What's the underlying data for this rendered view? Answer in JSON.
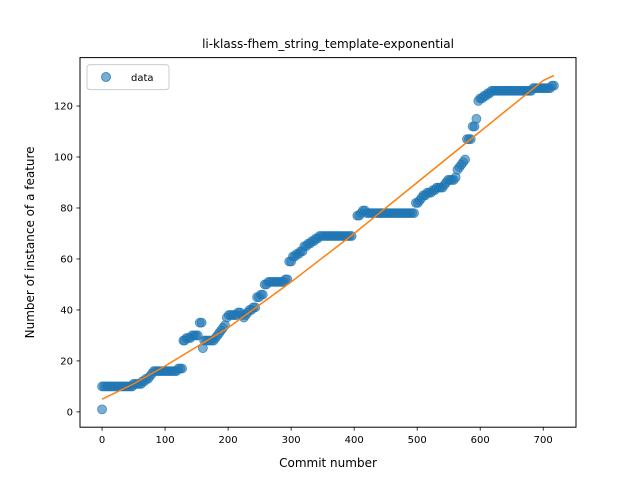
{
  "chart_data": {
    "type": "scatter",
    "title": "li-klass-fhem_string_template-exponential",
    "xlabel": "Commit number",
    "ylabel": "Number of instance of a feature",
    "xlim": [
      -35,
      752
    ],
    "ylim": [
      -6,
      139
    ],
    "xticks": [
      0,
      100,
      200,
      300,
      400,
      500,
      600,
      700
    ],
    "yticks": [
      0,
      20,
      40,
      60,
      80,
      100,
      120
    ],
    "legend": {
      "position": "top-left",
      "entries": [
        "data"
      ]
    },
    "grid": false,
    "colors": {
      "points": "#1f77b4",
      "fit": "#ff7f0e"
    },
    "series": [
      {
        "name": "data",
        "style": "points",
        "points": [
          [
            0,
            1
          ],
          [
            0,
            10
          ],
          [
            3,
            10
          ],
          [
            6,
            10
          ],
          [
            9,
            10
          ],
          [
            12,
            10
          ],
          [
            15,
            10
          ],
          [
            18,
            10
          ],
          [
            21,
            10
          ],
          [
            24,
            10
          ],
          [
            27,
            10
          ],
          [
            30,
            10
          ],
          [
            33,
            10
          ],
          [
            36,
            10
          ],
          [
            39,
            10
          ],
          [
            42,
            10
          ],
          [
            45,
            10
          ],
          [
            48,
            10
          ],
          [
            50,
            11
          ],
          [
            53,
            11
          ],
          [
            56,
            11
          ],
          [
            59,
            11
          ],
          [
            62,
            11
          ],
          [
            64,
            12
          ],
          [
            67,
            12
          ],
          [
            70,
            13
          ],
          [
            73,
            13
          ],
          [
            76,
            14
          ],
          [
            79,
            15
          ],
          [
            82,
            16
          ],
          [
            85,
            16
          ],
          [
            88,
            16
          ],
          [
            91,
            16
          ],
          [
            94,
            16
          ],
          [
            97,
            16
          ],
          [
            100,
            16
          ],
          [
            103,
            16
          ],
          [
            106,
            16
          ],
          [
            109,
            16
          ],
          [
            112,
            16
          ],
          [
            115,
            16
          ],
          [
            118,
            16
          ],
          [
            121,
            17
          ],
          [
            124,
            17
          ],
          [
            127,
            17
          ],
          [
            129,
            28
          ],
          [
            131,
            28
          ],
          [
            134,
            29
          ],
          [
            137,
            29
          ],
          [
            140,
            29
          ],
          [
            143,
            30
          ],
          [
            146,
            30
          ],
          [
            149,
            30
          ],
          [
            152,
            30
          ],
          [
            155,
            35
          ],
          [
            158,
            35
          ],
          [
            160,
            25
          ],
          [
            162,
            28
          ],
          [
            165,
            28
          ],
          [
            168,
            28
          ],
          [
            171,
            28
          ],
          [
            174,
            28
          ],
          [
            177,
            28
          ],
          [
            180,
            29
          ],
          [
            183,
            30
          ],
          [
            186,
            31
          ],
          [
            189,
            32
          ],
          [
            192,
            33
          ],
          [
            195,
            34
          ],
          [
            198,
            37
          ],
          [
            201,
            38
          ],
          [
            204,
            38
          ],
          [
            207,
            38
          ],
          [
            210,
            38
          ],
          [
            213,
            38
          ],
          [
            216,
            39
          ],
          [
            219,
            39
          ],
          [
            222,
            38
          ],
          [
            225,
            37
          ],
          [
            228,
            38
          ],
          [
            231,
            39
          ],
          [
            234,
            40
          ],
          [
            237,
            40
          ],
          [
            240,
            41
          ],
          [
            243,
            41
          ],
          [
            246,
            45
          ],
          [
            249,
            45
          ],
          [
            252,
            46
          ],
          [
            255,
            46
          ],
          [
            258,
            50
          ],
          [
            261,
            50
          ],
          [
            264,
            51
          ],
          [
            267,
            51
          ],
          [
            270,
            51
          ],
          [
            273,
            51
          ],
          [
            276,
            51
          ],
          [
            279,
            51
          ],
          [
            282,
            51
          ],
          [
            285,
            51
          ],
          [
            288,
            51
          ],
          [
            291,
            52
          ],
          [
            294,
            52
          ],
          [
            297,
            59
          ],
          [
            300,
            59
          ],
          [
            303,
            61
          ],
          [
            306,
            61
          ],
          [
            309,
            62
          ],
          [
            312,
            62
          ],
          [
            315,
            63
          ],
          [
            318,
            63
          ],
          [
            321,
            65
          ],
          [
            324,
            65
          ],
          [
            327,
            66
          ],
          [
            330,
            66
          ],
          [
            333,
            67
          ],
          [
            336,
            67
          ],
          [
            339,
            68
          ],
          [
            342,
            68
          ],
          [
            345,
            69
          ],
          [
            348,
            69
          ],
          [
            351,
            69
          ],
          [
            354,
            69
          ],
          [
            357,
            69
          ],
          [
            360,
            69
          ],
          [
            363,
            69
          ],
          [
            366,
            69
          ],
          [
            369,
            69
          ],
          [
            372,
            69
          ],
          [
            375,
            69
          ],
          [
            378,
            69
          ],
          [
            381,
            69
          ],
          [
            384,
            69
          ],
          [
            387,
            69
          ],
          [
            390,
            69
          ],
          [
            393,
            69
          ],
          [
            396,
            69
          ],
          [
            405,
            77
          ],
          [
            408,
            77
          ],
          [
            411,
            78
          ],
          [
            414,
            79
          ],
          [
            417,
            79
          ],
          [
            420,
            78
          ],
          [
            423,
            78
          ],
          [
            426,
            78
          ],
          [
            429,
            78
          ],
          [
            432,
            78
          ],
          [
            435,
            78
          ],
          [
            438,
            78
          ],
          [
            441,
            78
          ],
          [
            444,
            78
          ],
          [
            447,
            78
          ],
          [
            450,
            78
          ],
          [
            453,
            78
          ],
          [
            456,
            78
          ],
          [
            459,
            78
          ],
          [
            462,
            78
          ],
          [
            465,
            78
          ],
          [
            468,
            78
          ],
          [
            471,
            78
          ],
          [
            474,
            78
          ],
          [
            477,
            78
          ],
          [
            480,
            78
          ],
          [
            483,
            78
          ],
          [
            486,
            78
          ],
          [
            489,
            78
          ],
          [
            492,
            78
          ],
          [
            495,
            78
          ],
          [
            498,
            82
          ],
          [
            501,
            82
          ],
          [
            504,
            83
          ],
          [
            507,
            84
          ],
          [
            510,
            85
          ],
          [
            513,
            85
          ],
          [
            516,
            86
          ],
          [
            519,
            86
          ],
          [
            522,
            86
          ],
          [
            525,
            87
          ],
          [
            528,
            87
          ],
          [
            531,
            88
          ],
          [
            534,
            88
          ],
          [
            537,
            88
          ],
          [
            540,
            88
          ],
          [
            543,
            89
          ],
          [
            546,
            90
          ],
          [
            549,
            91
          ],
          [
            552,
            91
          ],
          [
            555,
            91
          ],
          [
            558,
            91
          ],
          [
            561,
            92
          ],
          [
            564,
            95
          ],
          [
            567,
            96
          ],
          [
            570,
            97
          ],
          [
            573,
            98
          ],
          [
            576,
            99
          ],
          [
            579,
            107
          ],
          [
            582,
            107
          ],
          [
            585,
            107
          ],
          [
            588,
            112
          ],
          [
            591,
            112
          ],
          [
            594,
            115
          ],
          [
            597,
            122
          ],
          [
            600,
            123
          ],
          [
            603,
            123
          ],
          [
            606,
            124
          ],
          [
            609,
            124
          ],
          [
            612,
            125
          ],
          [
            615,
            125
          ],
          [
            618,
            126
          ],
          [
            621,
            126
          ],
          [
            624,
            126
          ],
          [
            627,
            126
          ],
          [
            630,
            126
          ],
          [
            633,
            126
          ],
          [
            636,
            126
          ],
          [
            639,
            126
          ],
          [
            642,
            126
          ],
          [
            645,
            126
          ],
          [
            648,
            126
          ],
          [
            651,
            126
          ],
          [
            654,
            126
          ],
          [
            657,
            126
          ],
          [
            660,
            126
          ],
          [
            663,
            126
          ],
          [
            666,
            126
          ],
          [
            669,
            126
          ],
          [
            672,
            126
          ],
          [
            675,
            126
          ],
          [
            678,
            126
          ],
          [
            681,
            126
          ],
          [
            684,
            127
          ],
          [
            687,
            127
          ],
          [
            690,
            127
          ],
          [
            693,
            127
          ],
          [
            696,
            127
          ],
          [
            699,
            127
          ],
          [
            702,
            127
          ],
          [
            705,
            127
          ],
          [
            708,
            127
          ],
          [
            711,
            127
          ],
          [
            714,
            128
          ],
          [
            717,
            128
          ]
        ]
      },
      {
        "style": "line",
        "points": [
          [
            0,
            5
          ],
          [
            50,
            11
          ],
          [
            100,
            18
          ],
          [
            150,
            25.5
          ],
          [
            200,
            33
          ],
          [
            250,
            42
          ],
          [
            300,
            51
          ],
          [
            350,
            60.5
          ],
          [
            400,
            70
          ],
          [
            450,
            80
          ],
          [
            500,
            90
          ],
          [
            550,
            100
          ],
          [
            600,
            110
          ],
          [
            650,
            120
          ],
          [
            700,
            130
          ],
          [
            717,
            132
          ]
        ]
      }
    ]
  }
}
